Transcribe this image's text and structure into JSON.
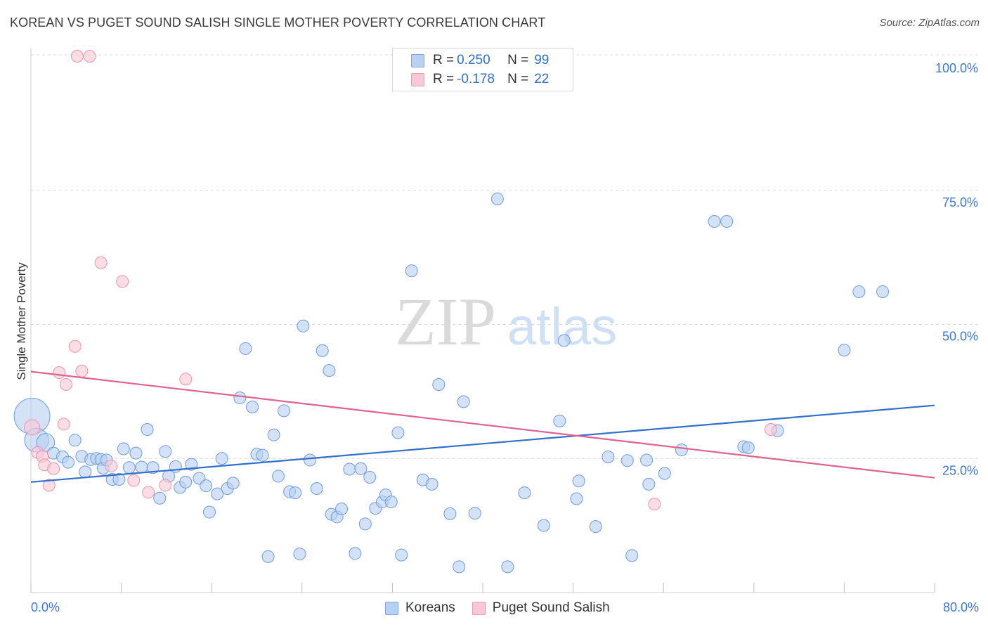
{
  "header": {
    "title": "KOREAN VS PUGET SOUND SALISH SINGLE MOTHER POVERTY CORRELATION CHART",
    "source": "Source: ZipAtlas.com"
  },
  "legend": {
    "rows": [
      {
        "r_label": "R =",
        "r_value": "0.250",
        "n_label": "N =",
        "n_value": "99"
      },
      {
        "r_label": "R =",
        "r_value": "-0.178",
        "n_label": "N =",
        "n_value": "22"
      }
    ]
  },
  "bottom_legend": {
    "items": [
      "Koreans",
      "Puget Sound Salish"
    ]
  },
  "watermark": {
    "part1": "ZIP",
    "part2": "atlas"
  },
  "colors": {
    "blue_fill": "#b8d0f2",
    "blue_stroke": "#6e9be0",
    "blue_line": "#2f6fce",
    "pink_fill": "#f8c8d6",
    "pink_stroke": "#ee93ae",
    "pink_line": "#e0628f",
    "tick_label": "#3b78d4",
    "grid": "#d9d9d9"
  },
  "chart_data": {
    "type": "scatter",
    "title": "KOREAN VS PUGET SOUND SALISH SINGLE MOTHER POVERTY CORRELATION CHART",
    "xlabel": "",
    "ylabel": "Single Mother Poverty",
    "xlim": [
      0,
      80
    ],
    "ylim": [
      0,
      100
    ],
    "x_tick_labels": [
      "0.0%",
      "80.0%"
    ],
    "y_ticks": [
      25,
      50,
      75,
      100
    ],
    "y_tick_labels": [
      "25.0%",
      "50.0%",
      "75.0%",
      "100.0%"
    ],
    "grid": true,
    "legend_position": "top-center",
    "series": [
      {
        "name": "Koreans",
        "color": "#b8d0f2",
        "stats": {
          "R": 0.25,
          "N": 99
        },
        "trend": {
          "x": [
            0,
            80
          ],
          "y": [
            20.6,
            34.9
          ]
        },
        "points": [
          [
            0.1,
            32.9,
            3
          ],
          [
            0.5,
            28.4,
            2
          ],
          [
            1.3,
            28.0,
            1.5
          ],
          [
            2.0,
            26.0,
            1
          ],
          [
            2.8,
            25.3,
            1
          ],
          [
            3.3,
            24.3,
            1
          ],
          [
            3.9,
            28.4,
            1
          ],
          [
            4.5,
            25.4,
            1
          ],
          [
            4.8,
            22.5,
            1
          ],
          [
            5.3,
            24.8,
            1
          ],
          [
            5.8,
            25.0,
            1
          ],
          [
            6.2,
            24.8,
            1
          ],
          [
            6.4,
            23.2,
            1
          ],
          [
            6.7,
            24.7,
            1
          ],
          [
            7.2,
            21.1,
            1
          ],
          [
            7.8,
            21.1,
            1
          ],
          [
            8.2,
            26.8,
            1
          ],
          [
            8.7,
            23.3,
            1
          ],
          [
            9.3,
            26.0,
            1
          ],
          [
            9.8,
            23.4,
            1
          ],
          [
            10.3,
            30.4,
            1
          ],
          [
            10.8,
            23.3,
            1
          ],
          [
            11.4,
            17.6,
            1
          ],
          [
            11.9,
            26.3,
            1
          ],
          [
            12.2,
            21.7,
            1
          ],
          [
            12.8,
            23.5,
            1
          ],
          [
            13.2,
            19.6,
            1
          ],
          [
            13.7,
            20.6,
            1
          ],
          [
            14.2,
            23.9,
            1
          ],
          [
            14.9,
            21.3,
            1
          ],
          [
            15.5,
            19.9,
            1
          ],
          [
            15.8,
            15.0,
            1
          ],
          [
            16.5,
            18.4,
            1
          ],
          [
            16.9,
            25.0,
            1
          ],
          [
            17.4,
            19.4,
            1
          ],
          [
            17.9,
            20.4,
            1
          ],
          [
            18.5,
            36.3,
            1
          ],
          [
            19.0,
            45.5,
            1
          ],
          [
            19.6,
            34.6,
            1
          ],
          [
            20.0,
            25.8,
            1
          ],
          [
            20.5,
            25.6,
            1
          ],
          [
            21.0,
            6.7,
            1
          ],
          [
            21.5,
            29.4,
            1
          ],
          [
            21.9,
            21.7,
            1
          ],
          [
            22.4,
            33.9,
            1
          ],
          [
            22.9,
            18.8,
            1
          ],
          [
            23.4,
            18.6,
            1
          ],
          [
            23.8,
            7.2,
            1
          ],
          [
            24.1,
            49.7,
            1
          ],
          [
            24.7,
            24.7,
            1
          ],
          [
            25.3,
            19.4,
            1
          ],
          [
            25.8,
            45.1,
            1
          ],
          [
            26.4,
            41.4,
            1
          ],
          [
            26.6,
            14.6,
            1
          ],
          [
            27.1,
            14.1,
            1
          ],
          [
            27.5,
            15.6,
            1
          ],
          [
            28.2,
            23.0,
            1
          ],
          [
            28.7,
            7.3,
            1
          ],
          [
            29.2,
            23.1,
            1
          ],
          [
            29.6,
            12.8,
            1
          ],
          [
            30.0,
            21.5,
            1
          ],
          [
            30.5,
            15.7,
            1
          ],
          [
            31.1,
            16.9,
            1
          ],
          [
            31.4,
            18.2,
            1
          ],
          [
            31.9,
            16.9,
            1
          ],
          [
            32.5,
            29.8,
            1
          ],
          [
            32.8,
            7.0,
            1
          ],
          [
            33.7,
            60.0,
            1
          ],
          [
            34.7,
            21.0,
            1
          ],
          [
            35.5,
            20.2,
            1
          ],
          [
            36.1,
            38.8,
            1
          ],
          [
            37.1,
            14.7,
            1
          ],
          [
            37.9,
            4.8,
            1
          ],
          [
            38.3,
            35.6,
            1
          ],
          [
            39.3,
            14.8,
            1
          ],
          [
            41.3,
            73.4,
            1
          ],
          [
            42.2,
            4.8,
            1
          ],
          [
            43.7,
            18.6,
            1
          ],
          [
            45.4,
            12.5,
            1
          ],
          [
            46.8,
            32.0,
            1
          ],
          [
            47.2,
            47.0,
            1
          ],
          [
            48.3,
            17.5,
            1
          ],
          [
            48.5,
            20.8,
            1
          ],
          [
            50.0,
            12.3,
            1
          ],
          [
            51.1,
            25.3,
            1
          ],
          [
            52.8,
            24.6,
            1
          ],
          [
            53.2,
            6.9,
            1
          ],
          [
            54.5,
            24.7,
            1
          ],
          [
            54.7,
            20.2,
            1
          ],
          [
            56.1,
            22.2,
            1
          ],
          [
            57.6,
            26.6,
            1
          ],
          [
            60.5,
            69.2,
            1
          ],
          [
            61.6,
            69.2,
            1
          ],
          [
            63.1,
            27.2,
            1
          ],
          [
            63.5,
            27.0,
            1
          ],
          [
            66.1,
            30.2,
            1
          ],
          [
            72.0,
            45.2,
            1
          ],
          [
            73.3,
            56.1,
            1
          ],
          [
            75.4,
            56.1,
            1
          ]
        ]
      },
      {
        "name": "Puget Sound Salish",
        "color": "#f8c8d6",
        "stats": {
          "R": -0.178,
          "N": 22
        },
        "trend": {
          "x": [
            0,
            80
          ],
          "y": [
            41.2,
            21.4
          ]
        },
        "points": [
          [
            0.1,
            30.8,
            1.3
          ],
          [
            0.6,
            26.1,
            1
          ],
          [
            1.0,
            25.4,
            1
          ],
          [
            1.2,
            23.8,
            1
          ],
          [
            1.6,
            20.0,
            1
          ],
          [
            2.0,
            23.1,
            1
          ],
          [
            2.5,
            41.0,
            1
          ],
          [
            2.9,
            31.4,
            1
          ],
          [
            3.1,
            38.8,
            1
          ],
          [
            3.9,
            45.9,
            1
          ],
          [
            4.1,
            100.0,
            1
          ],
          [
            4.5,
            41.3,
            1
          ],
          [
            5.2,
            100.0,
            1
          ],
          [
            6.2,
            61.5,
            1
          ],
          [
            7.1,
            23.6,
            1
          ],
          [
            8.1,
            58.0,
            1
          ],
          [
            9.1,
            20.9,
            1
          ],
          [
            10.4,
            18.7,
            1
          ],
          [
            11.9,
            20.0,
            1
          ],
          [
            13.7,
            39.8,
            1
          ],
          [
            55.2,
            16.5,
            1
          ],
          [
            65.5,
            30.4,
            1
          ]
        ]
      }
    ]
  }
}
